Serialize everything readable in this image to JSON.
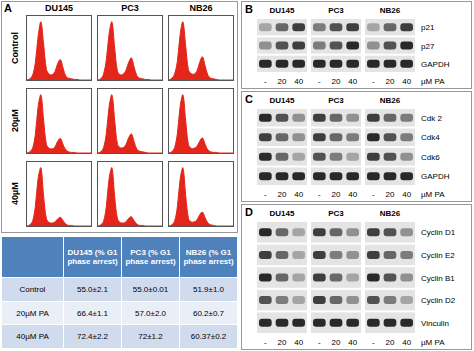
{
  "panel_a": {
    "label": "A",
    "columns": [
      "DU145",
      "PC3",
      "NB26"
    ],
    "rows": [
      "Control",
      "20µM",
      "40µM"
    ],
    "table": {
      "header": [
        "DU145 (% G1 phase arrest)",
        "PC3 (% G1 phase arrest)",
        "NB26 (% G1 phase arrest)"
      ],
      "rows": [
        [
          "Control",
          "55.0±2.1",
          "55.0±0.01",
          "51.9±1.0"
        ],
        [
          "20µM PA",
          "66.4±1.1",
          "57.0±2.0",
          "60.2±0.7"
        ],
        [
          "40µM PA",
          "72.4±2.2",
          "72±1.2",
          "60.37±0.2"
        ]
      ]
    }
  },
  "blots": [
    {
      "label": "B",
      "cell_lines": [
        "DU145",
        "PC3",
        "NB26"
      ],
      "lanes": [
        "-",
        "20",
        "40"
      ],
      "unit": "µM PA",
      "proteins": [
        {
          "name": "p21",
          "intensity": [
            0.3,
            0.6,
            0.8,
            0.5,
            0.7,
            0.8,
            0.3,
            0.6,
            0.8
          ]
        },
        {
          "name": "p27",
          "intensity": [
            0.4,
            0.7,
            0.8,
            0.5,
            0.7,
            0.9,
            0.4,
            0.7,
            0.9
          ]
        },
        {
          "name": "GAPDH",
          "intensity": [
            0.9,
            0.9,
            0.9,
            0.9,
            0.9,
            0.9,
            0.9,
            0.9,
            0.9
          ]
        }
      ]
    },
    {
      "label": "C",
      "cell_lines": [
        "DU145",
        "PC3",
        "NB26"
      ],
      "lanes": [
        "-",
        "20",
        "40"
      ],
      "unit": "µM PA",
      "proteins": [
        {
          "name": "Cdk 2",
          "intensity": [
            0.9,
            0.7,
            0.4,
            0.8,
            0.6,
            0.4,
            0.8,
            0.6,
            0.5
          ]
        },
        {
          "name": "Cdk4",
          "intensity": [
            0.8,
            0.6,
            0.4,
            0.8,
            0.6,
            0.5,
            0.9,
            0.7,
            0.5
          ]
        },
        {
          "name": "Cdk6",
          "intensity": [
            0.9,
            0.6,
            0.3,
            0.7,
            0.5,
            0.3,
            0.8,
            0.7,
            0.4
          ]
        },
        {
          "name": "GAPDH",
          "intensity": [
            0.9,
            0.9,
            0.9,
            0.9,
            0.9,
            0.9,
            0.9,
            0.9,
            0.9
          ]
        }
      ]
    },
    {
      "label": "D",
      "cell_lines": [
        "DU145",
        "PC3",
        "NB26"
      ],
      "lanes": [
        "-",
        "20",
        "40"
      ],
      "unit": "µM PA",
      "proteins": [
        {
          "name": "Cyclin D1",
          "intensity": [
            0.9,
            0.6,
            0.3,
            0.8,
            0.6,
            0.4,
            0.8,
            0.7,
            0.4
          ]
        },
        {
          "name": "Cyclin E2",
          "intensity": [
            0.8,
            0.6,
            0.3,
            0.8,
            0.5,
            0.4,
            0.8,
            0.6,
            0.5
          ]
        },
        {
          "name": "Cyclin B1",
          "intensity": [
            0.9,
            0.6,
            0.3,
            0.8,
            0.6,
            0.3,
            0.9,
            0.7,
            0.4
          ]
        },
        {
          "name": "Cyclin D2",
          "intensity": [
            0.7,
            0.5,
            0.3,
            0.8,
            0.6,
            0.4,
            0.7,
            0.5,
            0.3
          ]
        },
        {
          "name": "Vinculin",
          "intensity": [
            0.9,
            0.9,
            0.9,
            0.9,
            0.9,
            0.9,
            0.9,
            0.9,
            0.9
          ]
        }
      ]
    }
  ],
  "chart_data": [
    {
      "type": "line",
      "categories": [
        null,
        null,
        null,
        null,
        null,
        null,
        null,
        null,
        null,
        null,
        null,
        null,
        null,
        null,
        null,
        null,
        null,
        null,
        null,
        null,
        null,
        null,
        null,
        null
      ],
      "values": [
        0,
        2,
        8,
        30,
        75,
        100,
        60,
        18,
        10,
        9,
        14,
        28,
        35,
        20,
        6,
        3,
        2,
        1,
        1,
        0,
        0,
        0,
        0,
        0
      ],
      "color": "#e32619",
      "ylim": [
        0,
        110
      ],
      "grid": false,
      "tick_labels": false
    },
    {
      "type": "line",
      "categories": [
        null,
        null,
        null,
        null,
        null,
        null,
        null,
        null,
        null,
        null,
        null,
        null,
        null,
        null,
        null,
        null,
        null,
        null,
        null,
        null,
        null,
        null,
        null,
        null
      ],
      "values": [
        0,
        2,
        10,
        35,
        80,
        100,
        55,
        15,
        9,
        10,
        16,
        30,
        38,
        22,
        7,
        3,
        2,
        1,
        1,
        0,
        0,
        0,
        0,
        0
      ],
      "color": "#e32619",
      "ylim": [
        0,
        110
      ],
      "grid": false,
      "tick_labels": false
    },
    {
      "type": "line",
      "categories": [
        null,
        null,
        null,
        null,
        null,
        null,
        null,
        null,
        null,
        null,
        null,
        null,
        null,
        null,
        null,
        null,
        null,
        null,
        null,
        null,
        null,
        null,
        null,
        null
      ],
      "values": [
        0,
        3,
        10,
        32,
        78,
        100,
        58,
        17,
        11,
        10,
        15,
        30,
        40,
        24,
        8,
        3,
        2,
        1,
        0,
        0,
        0,
        0,
        0,
        0
      ],
      "color": "#e32619",
      "ylim": [
        0,
        110
      ],
      "grid": false,
      "tick_labels": false
    },
    {
      "type": "line",
      "categories": [
        null,
        null,
        null,
        null,
        null,
        null,
        null,
        null,
        null,
        null,
        null,
        null,
        null,
        null,
        null,
        null,
        null,
        null,
        null,
        null,
        null,
        null,
        null,
        null
      ],
      "values": [
        0,
        2,
        8,
        32,
        80,
        100,
        55,
        14,
        8,
        7,
        10,
        20,
        25,
        14,
        5,
        2,
        1,
        1,
        0,
        0,
        0,
        0,
        0,
        0
      ],
      "color": "#e32619",
      "ylim": [
        0,
        110
      ],
      "grid": false,
      "tick_labels": false
    },
    {
      "type": "line",
      "categories": [
        null,
        null,
        null,
        null,
        null,
        null,
        null,
        null,
        null,
        null,
        null,
        null,
        null,
        null,
        null,
        null,
        null,
        null,
        null,
        null,
        null,
        null,
        null,
        null
      ],
      "values": [
        0,
        2,
        9,
        34,
        80,
        100,
        56,
        15,
        9,
        9,
        14,
        26,
        33,
        19,
        6,
        3,
        2,
        1,
        0,
        0,
        0,
        0,
        0,
        0
      ],
      "color": "#e32619",
      "ylim": [
        0,
        110
      ],
      "grid": false,
      "tick_labels": false
    },
    {
      "type": "line",
      "categories": [
        null,
        null,
        null,
        null,
        null,
        null,
        null,
        null,
        null,
        null,
        null,
        null,
        null,
        null,
        null,
        null,
        null,
        null,
        null,
        null,
        null,
        null,
        null,
        null
      ],
      "values": [
        0,
        2,
        9,
        33,
        80,
        100,
        55,
        14,
        8,
        8,
        11,
        20,
        26,
        15,
        5,
        2,
        1,
        1,
        0,
        0,
        0,
        0,
        0,
        0
      ],
      "color": "#e32619",
      "ylim": [
        0,
        110
      ],
      "grid": false,
      "tick_labels": false
    },
    {
      "type": "line",
      "categories": [
        null,
        null,
        null,
        null,
        null,
        null,
        null,
        null,
        null,
        null,
        null,
        null,
        null,
        null,
        null,
        null,
        null,
        null,
        null,
        null,
        null,
        null,
        null,
        null
      ],
      "values": [
        0,
        2,
        8,
        34,
        82,
        100,
        50,
        12,
        6,
        5,
        7,
        12,
        15,
        9,
        3,
        1,
        1,
        0,
        0,
        0,
        0,
        0,
        0,
        0
      ],
      "color": "#e32619",
      "ylim": [
        0,
        110
      ],
      "grid": false,
      "tick_labels": false
    },
    {
      "type": "line",
      "categories": [
        null,
        null,
        null,
        null,
        null,
        null,
        null,
        null,
        null,
        null,
        null,
        null,
        null,
        null,
        null,
        null,
        null,
        null,
        null,
        null,
        null,
        null,
        null,
        null
      ],
      "values": [
        0,
        2,
        8,
        34,
        82,
        100,
        50,
        12,
        6,
        5,
        7,
        13,
        16,
        9,
        3,
        1,
        1,
        0,
        0,
        0,
        0,
        0,
        0,
        0
      ],
      "color": "#e32619",
      "ylim": [
        0,
        110
      ],
      "grid": false,
      "tick_labels": false
    },
    {
      "type": "line",
      "categories": [
        null,
        null,
        null,
        null,
        null,
        null,
        null,
        null,
        null,
        null,
        null,
        null,
        null,
        null,
        null,
        null,
        null,
        null,
        null,
        null,
        null,
        null,
        null,
        null
      ],
      "values": [
        0,
        2,
        8,
        33,
        80,
        100,
        52,
        13,
        7,
        7,
        10,
        19,
        24,
        14,
        5,
        2,
        1,
        0,
        0,
        0,
        0,
        0,
        0,
        0
      ],
      "color": "#e32619",
      "ylim": [
        0,
        110
      ],
      "grid": false,
      "tick_labels": false
    }
  ]
}
